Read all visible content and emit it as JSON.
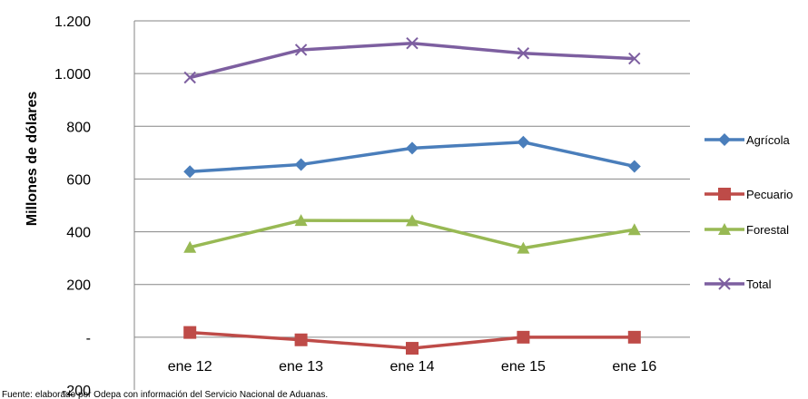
{
  "chart_data": {
    "type": "line",
    "categories": [
      "ene 12",
      "ene 13",
      "ene 14",
      "ene 15",
      "ene 16"
    ],
    "ylabel": "Millones de dólares",
    "ylim": [
      -200,
      1200
    ],
    "yticks": [
      -200,
      0,
      200,
      400,
      600,
      800,
      1000,
      1200
    ],
    "ytick_labels": [
      "-200",
      "-",
      "200",
      "400",
      "600",
      "800",
      "1.000",
      "1.200"
    ],
    "grid": true,
    "legend_position": "right",
    "series": [
      {
        "name": "Agrícola",
        "values": [
          628,
          655,
          717,
          740,
          648
        ],
        "color": "#4a7ebb",
        "marker": "diamond"
      },
      {
        "name": "Pecuario",
        "values": [
          18,
          -10,
          -42,
          0,
          0
        ],
        "color": "#be4b48",
        "marker": "square"
      },
      {
        "name": "Forestal",
        "values": [
          341,
          443,
          442,
          338,
          408
        ],
        "color": "#98b954",
        "marker": "triangle"
      },
      {
        "name": "Total",
        "values": [
          985,
          1090,
          1115,
          1077,
          1057
        ],
        "color": "#7d5fa0",
        "marker": "x"
      }
    ]
  },
  "footnote": "Fuente: elaborado por Odepa con información del Servicio Nacional de Aduanas."
}
